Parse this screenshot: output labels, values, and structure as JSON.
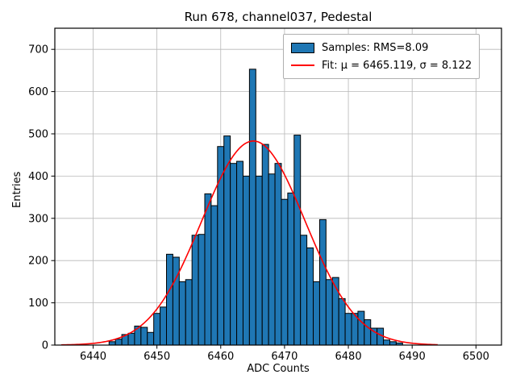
{
  "chart_data": {
    "type": "bar",
    "subtype": "histogram",
    "title": "Run 678, channel037, Pedestal",
    "xlabel": "ADC Counts",
    "ylabel": "Entries",
    "xlim": [
      6434,
      6504
    ],
    "ylim": [
      0,
      750
    ],
    "xticks": [
      6440,
      6450,
      6460,
      6470,
      6480,
      6490,
      6500
    ],
    "yticks": [
      0,
      100,
      200,
      300,
      400,
      500,
      600,
      700
    ],
    "grid": true,
    "bin_width": 1,
    "bin_centers": [
      6443,
      6444,
      6445,
      6446,
      6447,
      6448,
      6449,
      6450,
      6451,
      6452,
      6453,
      6454,
      6455,
      6456,
      6457,
      6458,
      6459,
      6460,
      6461,
      6462,
      6463,
      6464,
      6465,
      6466,
      6467,
      6468,
      6469,
      6470,
      6471,
      6472,
      6473,
      6474,
      6475,
      6476,
      6477,
      6478,
      6479,
      6480,
      6481,
      6482,
      6483,
      6484,
      6485,
      6486,
      6487,
      6488
    ],
    "counts": [
      8,
      14,
      25,
      28,
      45,
      42,
      30,
      75,
      90,
      215,
      208,
      150,
      155,
      260,
      262,
      358,
      330,
      470,
      495,
      430,
      435,
      400,
      653,
      400,
      475,
      405,
      430,
      345,
      360,
      497,
      260,
      230,
      150,
      297,
      155,
      160,
      110,
      75,
      75,
      80,
      60,
      40,
      40,
      12,
      8,
      5
    ],
    "fit": {
      "mu": 6465.119,
      "sigma": 8.122,
      "amplitude": 483,
      "x_start": 6435,
      "x_end": 6494
    },
    "legend": {
      "samples": "Samples: RMS=8.09",
      "fit": "Fit: μ = 6465.119, σ = 8.122",
      "position": "upper right"
    },
    "style": {
      "bar_color": "#1f77b4",
      "bar_edge_color": "#000000",
      "fit_color": "#ff0000",
      "grid_color": "#b8b8b8",
      "frame_color": "#000000"
    }
  }
}
